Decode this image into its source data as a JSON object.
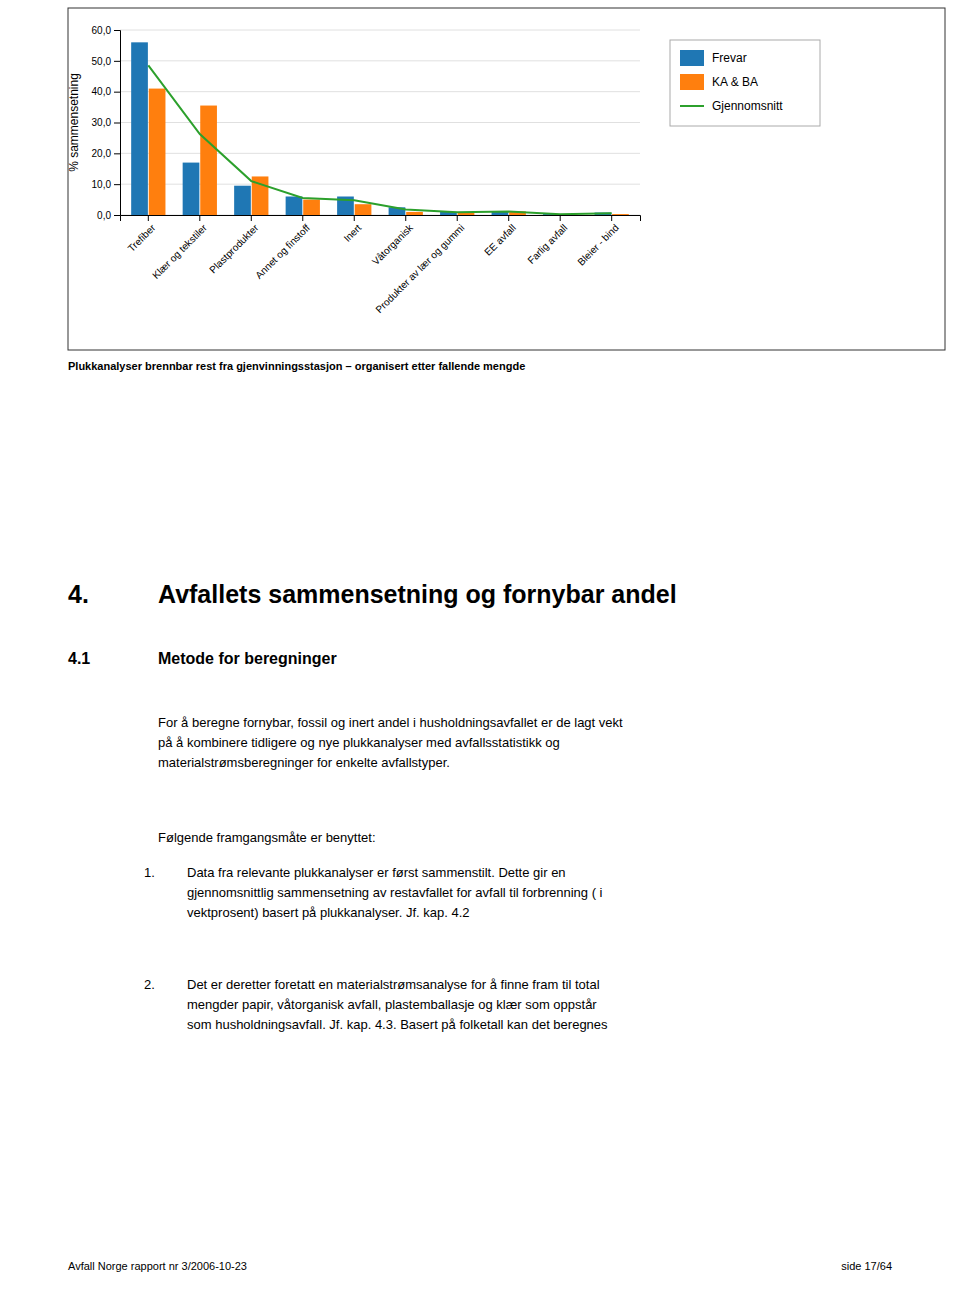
{
  "chart_data": {
    "type": "bar",
    "categories": [
      "Trefiber",
      "Klær og tekstiler",
      "Plastprodukter",
      "Annet og finstoff",
      "Inert",
      "Våtorganisk",
      "Produkter av lær og gummi",
      "EE avfall",
      "Farlig avfall",
      "Bleier - bind"
    ],
    "series": [
      {
        "name": "Frevar",
        "type": "bar",
        "values": [
          56.0,
          17.0,
          9.5,
          6.0,
          6.0,
          2.5,
          1.0,
          1.0,
          0.3,
          0.8
        ]
      },
      {
        "name": "KA & BA",
        "type": "bar",
        "values": [
          41.0,
          35.5,
          12.5,
          5.0,
          3.5,
          1.0,
          0.8,
          1.2,
          0.2,
          0.3
        ]
      },
      {
        "name": "Gjennomsnitt",
        "type": "line",
        "values": [
          48.5,
          26.25,
          11.0,
          5.5,
          4.75,
          1.75,
          0.9,
          1.1,
          0.25,
          0.55
        ]
      }
    ],
    "ylabel": "% sammensetning",
    "ylim": [
      0,
      60
    ],
    "yticks": [
      {
        "value": 0,
        "label": "0,0"
      },
      {
        "value": 10,
        "label": "10,0"
      },
      {
        "value": 20,
        "label": "20,0"
      },
      {
        "value": 30,
        "label": "30,0"
      },
      {
        "value": 40,
        "label": "40,0"
      },
      {
        "value": 50,
        "label": "50,0"
      },
      {
        "value": 60,
        "label": "60,0"
      }
    ],
    "grid": true,
    "legend": "right"
  },
  "page_text": {
    "caption": "Plukkanalyser  brennbar rest fra gjenvinningsstasjon – organisert etter fallende mengde",
    "section_number": "4.",
    "section_title": "Avfallets sammensetning og fornybar andel",
    "subsection_number": "4.1",
    "subsection_title": "Metode for beregninger",
    "body_text1": "For å beregne fornybar, fossil og inert andel i husholdningsavfallet er de lagt vekt\npå å kombinere tidligere og nye plukkanalyser med avfallsstatistikk og\nmaterialstrømsberegninger for enkelte avfallstyper.",
    "body_text2": "Følgende framgangsmåte er benyttet:",
    "list_item1_num": "1.",
    "list_item1": "Data fra relevante plukkanalyser er først sammenstilt.  Dette gir en\ngjennomsnittlig sammensetning av restavfallet for avfall til forbrenning ( i\nvektprosent) basert på plukkanalyser. Jf. kap. 4.2",
    "list_item2_num": "2.",
    "list_item2": "Det er deretter foretatt en materialstrømsanalyse for å finne fram til total\nmengder papir, våtorganisk avfall, plastemballasje og klær  som oppstår\nsom husholdningsavfall.   Jf. kap. 4.3.   Basert på folketall kan det beregnes",
    "footer_left": "Avfall Norge rapport nr 3/2006-10-23",
    "footer_right": "side 17/64"
  }
}
